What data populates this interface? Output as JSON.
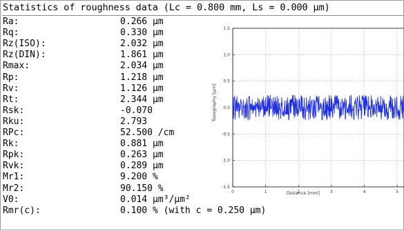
{
  "title": "Statistics of roughness data (Lc = 0.800 mm, Ls = 0.000 µm)",
  "stats": [
    {
      "label": "Ra:",
      "value": "0.266 µm"
    },
    {
      "label": "Rq:",
      "value": "0.330 µm"
    },
    {
      "label": "Rz(ISO):",
      "value": "2.032 µm"
    },
    {
      "label": "Rz(DIN):",
      "value": "1.861 µm"
    },
    {
      "label": "Rmax:",
      "value": "2.034 µm"
    },
    {
      "label": "Rp:",
      "value": "1.218 µm"
    },
    {
      "label": "Rv:",
      "value": "1.126 µm"
    },
    {
      "label": "Rt:",
      "value": "2.344 µm"
    },
    {
      "label": "Rsk:",
      "value": "-0.070"
    },
    {
      "label": "Rku:",
      "value": "2.793"
    },
    {
      "label": "RPc:",
      "value": "52.500 /cm"
    },
    {
      "label": "Rk:",
      "value": "0.881 µm"
    },
    {
      "label": "Rpk:",
      "value": "0.263 µm"
    },
    {
      "label": "Rvk:",
      "value": "0.289 µm"
    },
    {
      "label": "Mr1:",
      "value": "9.200 %"
    },
    {
      "label": "Mr2:",
      "value": "90.150 %"
    },
    {
      "label": "V0:",
      "value": "0.014 µm³/µm²"
    },
    {
      "label": "Rmr(c):",
      "value": "0.100 % (with c = 0.250 µm)"
    }
  ],
  "chart_data": {
    "type": "line",
    "xlabel": "Distance [mm]",
    "ylabel": "Topography [µm]",
    "xlim": [
      0,
      5.5
    ],
    "ylim": [
      -1.5,
      1.5
    ],
    "xticks": [
      "0",
      "1",
      "2",
      "3",
      "4",
      "5"
    ],
    "yticks": [
      "1.5",
      "1.0",
      "0.5",
      "0.0",
      "-0.5",
      "-1.0",
      "-1.5"
    ],
    "grid": true,
    "series_color": "#1f2fe0",
    "series": [
      {
        "x_start": 0,
        "x_step": 0.01,
        "values": [
          0.137,
          0.197,
          -0.209,
          -0.131,
          0.183,
          0.164,
          0.223,
          -0.225,
          -0.118,
          0.078,
          0.147,
          -0.061,
          0.101,
          0.205,
          -0.07,
          -0.066,
          0.087,
          0.014,
          0.101,
          -0.195,
          -0.078,
          0.066,
          -0.052,
          0.002,
          0.156,
          0.117,
          0.113,
          0.043,
          -0.146,
          -0.129,
          0.016,
          0.025,
          0.142,
          -0.004,
          -0.134,
          -0.204,
          0.033,
          -0.0,
          0.056,
          -0.176,
          0.102,
          -0.198,
          -0.183,
          0.166,
          0.043,
          0.042,
          -0.156,
          -0.236,
          0.074,
          0.212,
          0.21,
          0.196,
          -0.223,
          0.021,
          0.072,
          -0.043,
          0.066,
          -0.001,
          -0.045,
          0.146,
          -0.052,
          -0.117,
          0.029,
          0.046,
          -0.065,
          0.04,
          -0.036,
          -0.041,
          0.083,
          0.105,
          -0.173,
          -0.012,
          0.067,
          0.029,
          0.093,
          -0.012,
          -0.024,
          0.179,
          -0.077,
          0.041,
          -0.166,
          0.149,
          -0.019,
          -0.009,
          -0.085,
          0.1,
          -0.047,
          0.0,
          0.032,
          0.152,
          0.124,
          -0.035,
          0.054,
          0.202,
          -0.173,
          -0.149,
          0.133,
          -0.125,
          0.021,
          -0.138,
          0.186,
          -0.06,
          -0.06,
          0.021,
          -0.088,
          0.232,
          -0.056,
          0.045,
          0.22,
          0.04,
          -0.168,
          0.172,
          -0.128,
          0.174,
          0.235,
          -0.02,
          0.022,
          -0.027,
          0.017,
          0.166,
          0.083,
          0.036,
          -0.167,
          -0.052,
          0.194,
          -0.015,
          -0.127,
          0.111,
          -0.124,
          0.196,
          0.001,
          -0.101,
          0.121,
          -0.161,
          -0.093,
          0.214,
          -0.106,
          -0.024,
          -0.131,
          0.172,
          -0.222,
          0.069,
          0.083,
          -0.044,
          -0.036,
          -0.057,
          -0.206,
          0.082,
          0.034,
          0.187,
          0.065,
          -0.127,
          -0.085,
          -0.153,
          -0.16,
          -0.052,
          -0.16,
          -0.038,
          0.122,
          -0.084,
          -0.129,
          -0.079,
          -0.131,
          0.138,
          -0.125,
          0.051,
          -0.117,
          0.186,
          -0.137,
          0.086,
          -0.224,
          -0.233,
          -0.029,
          0.091,
          0.141,
          -0.096,
          0.158,
          -0.106,
          0.154,
          0.039,
          0.167,
          0.095,
          0.231,
          0.026,
          0.234,
          -0.133,
          0.104,
          -0.189,
          0.036,
          0.228,
          -0.157,
          -0.007,
          0.174,
          0.11,
          -0.116,
          -0.088,
          0.145,
          -0.162,
          -0.13,
          -0.027,
          -0.119,
          0.146,
          -0.02,
          0.166,
          0.081,
          -0.085,
          -0.06,
          -0.055,
          0.229,
          0.199,
          -0.062,
          0.199,
          -0.099,
          -0.191,
          0.012,
          -0.115,
          -0.214,
          0.179,
          0.041,
          -0.15,
          -0.184,
          -0.234,
          -0.01,
          -0.082,
          0.188,
          0.039,
          0.008,
          -0.07,
          0.019,
          0.018,
          0.133,
          -0.23,
          0.062,
          -0.094,
          0.094,
          0.213,
          -0.205,
          -0.05,
          0.025,
          0.118,
          0.092,
          0.145,
          -0.117,
          -0.138,
          -0.181,
          0.025,
          0.157,
          -0.211,
          -0.083,
          0.135,
          0.118,
          -0.168,
          -0.182,
          -0.101,
          0.222,
          0.197,
          0.102,
          0.198,
          0.142,
          0.05,
          -0.093,
          0.184,
          0.212,
          -0.052,
          -0.033,
          -0.026,
          0.066,
          0.026,
          0.09,
          -0.025,
          0.032,
          -0.233,
          -0.236,
          -0.209,
          0.079,
          -0.129,
          0.1,
          0.164,
          -0.157,
          -0.158,
          -0.06,
          -0.102,
          0.185,
          -0.148,
          0.109,
          -0.202,
          0.051,
          -0.228,
          0.067,
          0.124,
          -0.056,
          0.008,
          -0.163,
          0.229,
          -0.149,
          0.174,
          -0.203,
          0.002,
          -0.065,
          0.219,
          -0.071,
          0.161,
          -0.031,
          -0.152,
          -0.185,
          0.103,
          -0.026,
          0.033,
          0.064,
          -0.109,
          0.21,
          0.186,
          0.047,
          0.231,
          0.065,
          -0.017,
          0.209,
          0.082,
          0.223,
          0.103,
          -0.046,
          0.132,
          0.167,
          -0.027,
          -0.007,
          -0.205,
          -0.175,
          0.108,
          -0.166,
          -0.116,
          0.002,
          -0.15,
          0.169,
          0.131,
          0.1,
          -0.015,
          -0.136,
          0.103,
          -0.011,
          0.052,
          0.109,
          0.177,
          -0.223,
          -0.201,
          0.081,
          0.149,
          0.026,
          -0.056,
          -0.108,
          -0.021,
          -0.078,
          -0.097,
          0.013,
          0.06,
          -0.149,
          0.126,
          0.217,
          -0.09,
          0.046,
          -0.16,
          0.235,
          0.031,
          -0.188,
          -0.032,
          -0.052,
          -0.048,
          0.035,
          -0.104,
          -0.233,
          -0.191,
          0.012,
          0.113,
          0.076,
          0.172,
          0.081,
          0.034,
          -0.15,
          0.096,
          0.137,
          0.206,
          0.152,
          -0.092,
          -0.221,
          -0.036,
          -0.057,
          0.227,
          0.019,
          0.127,
          0.005,
          -0.051,
          0.059,
          -0.215,
          -0.129,
          0.218,
          0.197,
          0.152,
          0.189,
          0.229,
          -0.017,
          0.165,
          -0.151,
          0.188,
          -0.134,
          0.216,
          0.224,
          -0.044,
          0.089,
          0.211,
          0.028,
          0.129,
          -0.144,
          -0.168,
          -0.178,
          0.209,
          -0.043,
          -0.031,
          0.037,
          0.011,
          -0.038,
          -0.175,
          -0.18,
          0.228,
          -0.02,
          0.08,
          0.156,
          -0.057,
          -0.159,
          -0.094,
          0.047,
          -0.127,
          0.06,
          -0.022,
          -0.05,
          -0.123,
          -0.093,
          0.145,
          0.043,
          0.069,
          -0.173,
          0.055,
          0.079,
          0.198,
          0.08,
          -0.089,
          0.101,
          -0.076,
          0.044,
          -0.069,
          0.029,
          -0.087,
          0.218,
          -0.222,
          -0.16,
          0.043,
          -0.081,
          -0.09,
          0.181,
          -0.011,
          0.105,
          0.104,
          0.146,
          -0.17,
          0.083,
          0.035,
          -0.148,
          -0.166,
          -0.087,
          0.069,
          -0.105,
          -0.014,
          -0.234,
          -0.09,
          -0.122,
          -0.208,
          0.008,
          0.003,
          0.122,
          -0.003,
          0.032,
          0.225,
          -0.079,
          0.198,
          0.155,
          -0.031,
          0.057,
          -0.197,
          0.163,
          -0.201,
          -0.043,
          0.018,
          -0.196,
          -0.148,
          -0.138,
          0.178,
          0.072,
          -0.014,
          -0.057,
          -0.195,
          0.203,
          0.111,
          -0.067,
          -0.104,
          -0.156,
          -0.025,
          -0.083,
          -0.213,
          -0.058,
          -0.127,
          -0.229,
          0.017,
          0.073,
          0.214,
          0.049,
          0.112,
          -0.105,
          0.149,
          -0.164,
          -0.209,
          0.212,
          0.132,
          -0.068,
          0.024,
          -0.152,
          0.151,
          -0.051,
          -0.036,
          -0.074,
          -0.108,
          0.099,
          -0.228,
          0.199,
          -0.005,
          -0.191,
          0.143,
          0.06,
          -0.16,
          0.097,
          -0.024,
          -0.109,
          -0.082,
          0.183,
          0.025,
          0.12,
          -0.054,
          -0.123,
          0.22,
          0.182,
          -0.08,
          -0.221,
          0.001,
          -0.053,
          -0.055,
          0.201,
          0.143,
          -0.05,
          0.113,
          -0.088,
          -0.077,
          0.028,
          -0.018,
          0.143,
          -0.079,
          -0.184,
          -0.205,
          -0.028,
          -0.089,
          0.033,
          -0.046,
          0.198,
          0.142,
          -0.217,
          0.206,
          -0.197,
          0.198,
          0.015,
          0.016,
          0.152,
          -0.197,
          -0.018,
          0.154,
          -0.017,
          0.171,
          0.129,
          -0.166,
          -0.2,
          -0.154
        ]
      }
    ]
  }
}
